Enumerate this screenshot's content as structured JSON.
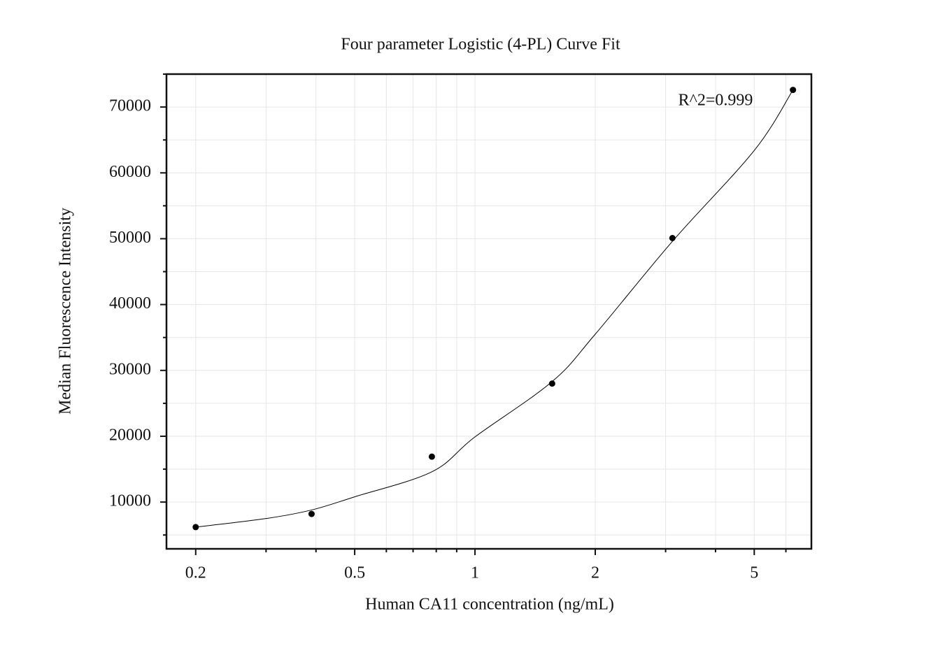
{
  "chart_data": {
    "type": "scatter",
    "title": "Four parameter Logistic (4-PL) Curve Fit",
    "x_label": "Human CA11 concentration (ng/mL)",
    "y_label": "Median Fluorescence Intensity",
    "annotation": "R^2=0.999",
    "x": [
      0.2,
      0.39,
      0.78,
      1.56,
      3.12,
      6.25
    ],
    "values": [
      6200,
      8200,
      16900,
      28000,
      50100,
      72600
    ],
    "color": "#000000",
    "fit": {
      "x": [
        0.2,
        0.3,
        0.39,
        0.5,
        0.78,
        1,
        1.56,
        2,
        3.12,
        5,
        6.25
      ],
      "values": [
        6200,
        7500,
        8800,
        10800,
        14600,
        19900,
        28300,
        35500,
        49600,
        63400,
        72600
      ],
      "color": "#000000"
    },
    "xlog": true,
    "xlim": [
      0.169,
      6.95
    ],
    "xticks": [
      0.2,
      0.5,
      1,
      2,
      5
    ],
    "xminor": [
      0.3,
      0.4,
      0.6,
      0.7,
      0.8,
      0.9,
      3,
      4,
      6
    ],
    "ylim": [
      2900,
      75000
    ],
    "yticks": [
      10000,
      20000,
      30000,
      40000,
      50000,
      60000,
      70000
    ],
    "yminor": [
      5000,
      15000,
      25000,
      35000,
      45000,
      55000,
      65000,
      75000
    ],
    "grid": true
  }
}
